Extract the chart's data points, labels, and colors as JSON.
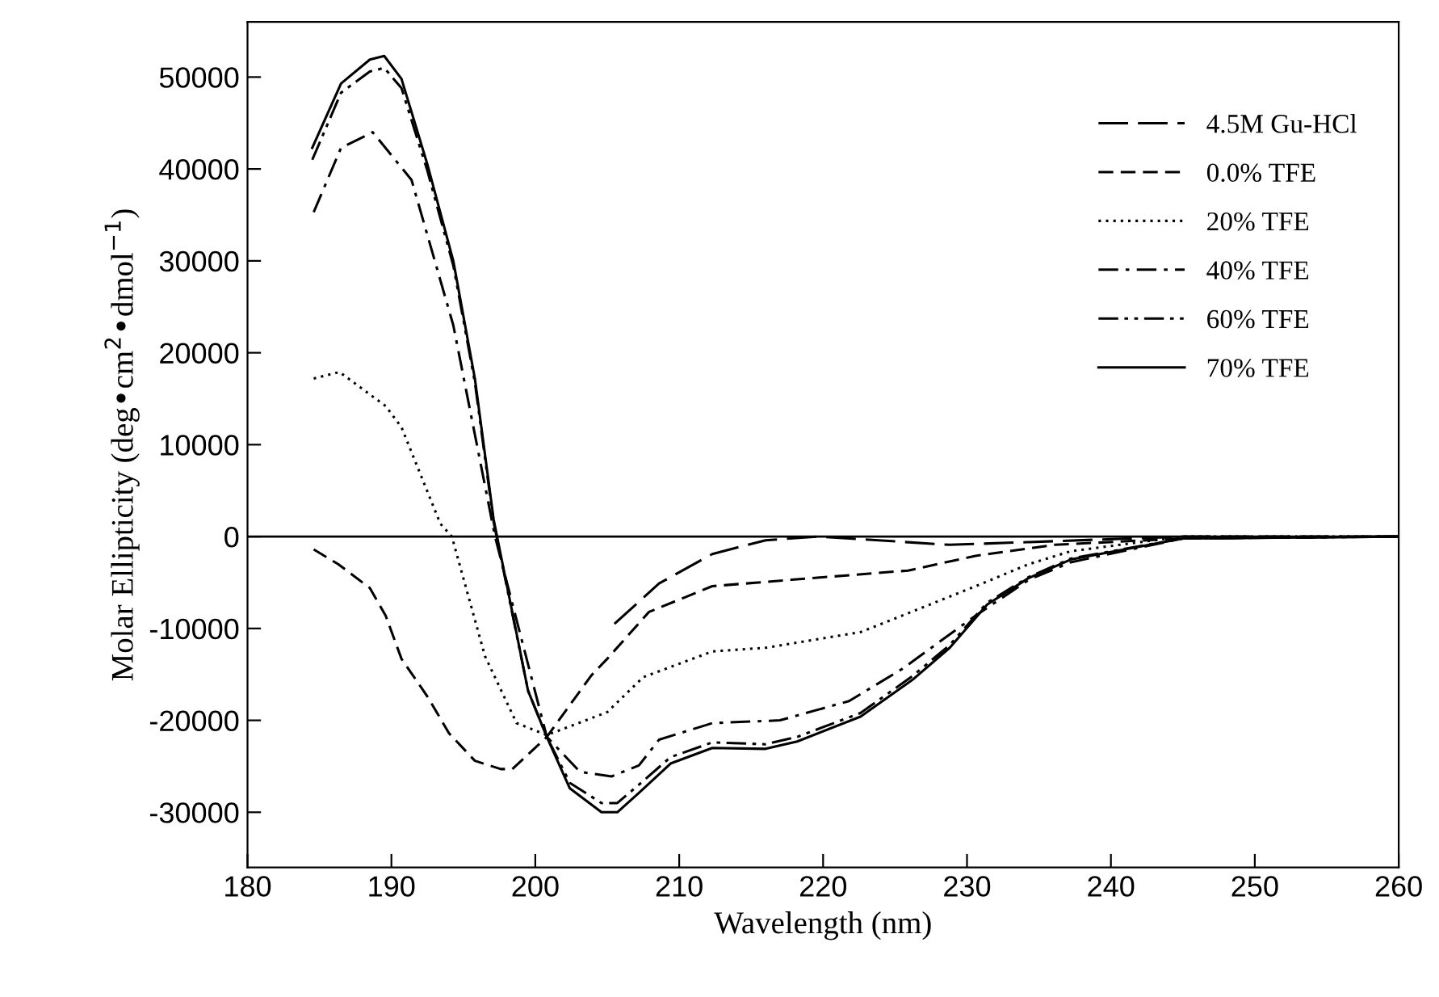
{
  "chart_data": {
    "type": "line",
    "xlabel": "Wavelength (nm)",
    "ylabel": "Molar Ellipticity (deg•cm$^{2}$•dmol$^{−1}$)",
    "xlim": [
      180,
      260
    ],
    "xticks": [
      180,
      190,
      200,
      210,
      220,
      230,
      240,
      250,
      260
    ],
    "ylim": [
      -36000,
      56000
    ],
    "yticks": [
      -30000,
      -20000,
      -10000,
      0,
      10000,
      20000,
      30000,
      40000,
      50000
    ],
    "grid": false,
    "legend": "top right",
    "ref_lines": [
      {
        "axis": "y",
        "value": 0,
        "color": "#000000"
      }
    ],
    "series": [
      {
        "name": "4.5M Gu-HCl",
        "color": "#000000",
        "line_style": "long dashed",
        "x": [
          205.5,
          208.6,
          212.3,
          216,
          219.7,
          228.8,
          234.3,
          245,
          260
        ],
        "values": [
          -9500,
          -5100,
          -1900,
          -400,
          0,
          -900,
          -600,
          0,
          0
        ]
      },
      {
        "name": "0.0% TFE",
        "color": "#000000",
        "line_style": "dashed",
        "x": [
          184.6,
          186.3,
          188.5,
          189.6,
          190.7,
          192.5,
          194,
          195.8,
          197.6,
          198.4,
          200.8,
          203.9,
          205,
          207.9,
          212.3,
          217.8,
          225.9,
          230.6,
          236.1,
          245,
          260
        ],
        "values": [
          -1400,
          -3000,
          -5600,
          -8600,
          -13300,
          -17400,
          -21400,
          -24400,
          -25300,
          -25300,
          -21800,
          -15100,
          -13300,
          -8200,
          -5400,
          -4700,
          -3700,
          -2100,
          -900,
          -200,
          0
        ]
      },
      {
        "name": "20% TFE",
        "color": "#000000",
        "line_style": "dotted",
        "x": [
          184.6,
          186.4,
          189.6,
          190.7,
          193.4,
          194.2,
          196.5,
          198.7,
          200.8,
          203,
          205,
          207.5,
          212.3,
          216,
          222.6,
          225.5,
          230.6,
          234.3,
          237.2,
          245,
          260
        ],
        "values": [
          17200,
          17900,
          14200,
          11900,
          1400,
          0,
          -13000,
          -20300,
          -21600,
          -20300,
          -19100,
          -15300,
          -12500,
          -12100,
          -10400,
          -8600,
          -5400,
          -3000,
          -1600,
          0,
          0
        ]
      },
      {
        "name": "40% TFE",
        "color": "#000000",
        "line_style": "dash-dot",
        "x": [
          184.6,
          186.5,
          188.7,
          191.4,
          194.3,
          197.2,
          200.8,
          203.1,
          205.3,
          207.2,
          208.6,
          212.3,
          217,
          221.8,
          225.5,
          230.6,
          234.3,
          237.2,
          245,
          260
        ],
        "values": [
          35300,
          42300,
          44000,
          38800,
          23000,
          0,
          -21800,
          -25600,
          -26100,
          -24900,
          -22100,
          -20300,
          -20000,
          -17900,
          -14400,
          -8600,
          -4700,
          -2800,
          -200,
          0
        ]
      },
      {
        "name": "60% TFE",
        "color": "#000000",
        "line_style": "dash-dot-dot",
        "x": [
          184.5,
          186.5,
          188.5,
          189.5,
          190.7,
          192.5,
          194.3,
          195.8,
          197.1,
          199.5,
          200.8,
          202.4,
          204.6,
          205.7,
          207.2,
          209.4,
          212.3,
          216,
          218.2,
          222.6,
          226.2,
          228.8,
          231.4,
          234.3,
          237.2,
          245,
          260
        ],
        "values": [
          41000,
          48300,
          50600,
          51000,
          48800,
          39800,
          29500,
          16800,
          1600,
          -16800,
          -21800,
          -26800,
          -29000,
          -29000,
          -27000,
          -24000,
          -22400,
          -22600,
          -21800,
          -19200,
          -15200,
          -11800,
          -7200,
          -4400,
          -2400,
          -200,
          0
        ]
      },
      {
        "name": "70% TFE",
        "color": "#000000",
        "line_style": "solid",
        "x": [
          184.5,
          186.5,
          188.5,
          189.5,
          190.7,
          192.5,
          194.3,
          195.8,
          197.1,
          199.5,
          200.8,
          202.4,
          204.6,
          205.7,
          207.2,
          209.4,
          212.3,
          216,
          218.2,
          222.6,
          226.2,
          228.8,
          231.4,
          234.3,
          237.2,
          245,
          260
        ],
        "values": [
          42300,
          49300,
          51900,
          52300,
          49800,
          40500,
          30000,
          17200,
          1900,
          -16800,
          -21800,
          -27400,
          -30000,
          -30000,
          -27900,
          -24700,
          -23000,
          -23100,
          -22300,
          -19600,
          -15600,
          -12100,
          -7400,
          -4500,
          -2500,
          -200,
          0
        ]
      }
    ]
  }
}
